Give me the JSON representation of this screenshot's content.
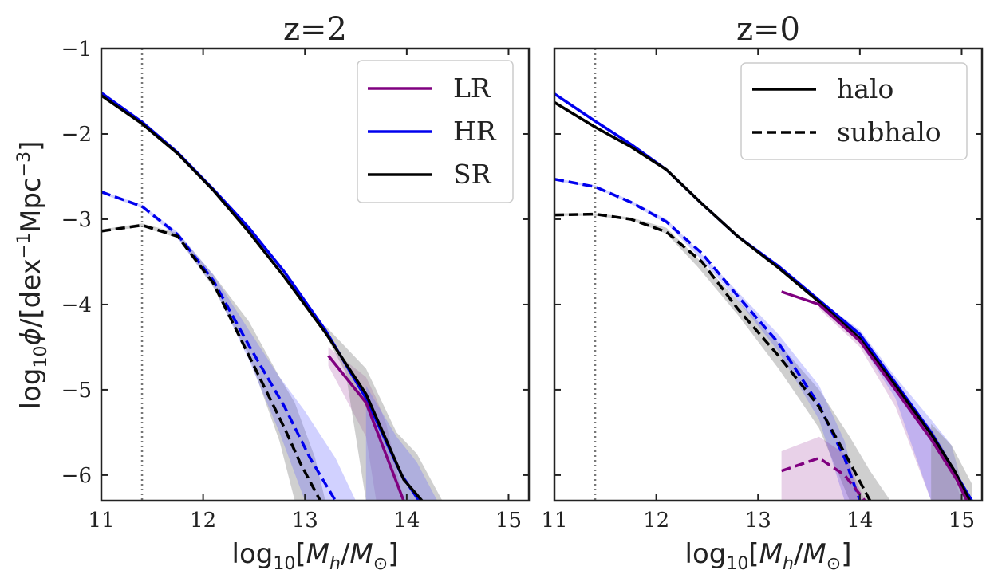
{
  "chart_data": [
    {
      "type": "line",
      "title": "z=2",
      "xlabel": "log10[M_h/M_sun]",
      "ylabel": "log10 phi/[dex^-1 Mpc^-3]",
      "xlim": [
        11,
        15.2
      ],
      "ylim": [
        -6.3,
        -1
      ],
      "xticks": [
        11,
        12,
        13,
        14,
        15
      ],
      "yticks": [
        -1,
        -2,
        -3,
        -4,
        -5,
        -6
      ],
      "vline": 11.4,
      "legend": {
        "position": "top-right",
        "entries": [
          {
            "label": "LR",
            "color": "#800080",
            "dash": false
          },
          {
            "label": "HR",
            "color": "#0000ee",
            "dash": false
          },
          {
            "label": "SR",
            "color": "#000000",
            "dash": false
          }
        ]
      },
      "bands": [
        {
          "name": "sr-subhalo-band",
          "color": "#808080",
          "opacity": 0.38,
          "x": [
            11.0,
            11.4,
            11.75,
            12.1,
            12.45,
            12.75,
            12.9,
            13.1,
            13.2
          ],
          "upper": [
            -3.12,
            -3.05,
            -3.16,
            -3.65,
            -4.2,
            -4.85,
            -5.15,
            -5.8,
            -6.3
          ],
          "lower": [
            -3.15,
            -3.09,
            -3.22,
            -3.8,
            -4.6,
            -5.6,
            -6.3,
            -6.3,
            -6.3
          ]
        },
        {
          "name": "hr-subhalo-band",
          "color": "#6666ff",
          "opacity": 0.3,
          "x": [
            11.0,
            11.4,
            11.75,
            12.1,
            12.45,
            12.75,
            13.0,
            13.3,
            13.5
          ],
          "upper": [
            -2.67,
            -2.83,
            -3.15,
            -3.65,
            -4.3,
            -4.85,
            -5.25,
            -5.8,
            -6.3
          ],
          "lower": [
            -2.7,
            -2.87,
            -3.22,
            -3.78,
            -4.65,
            -5.5,
            -6.3,
            -6.3,
            -6.3
          ]
        },
        {
          "name": "lr-halo-band",
          "color": "#800080",
          "opacity": 0.18,
          "x": [
            13.23,
            13.6,
            13.7,
            13.8,
            13.97
          ],
          "upper": [
            -4.5,
            -4.85,
            -5.1,
            -5.4,
            -6.3
          ],
          "lower": [
            -4.72,
            -5.55,
            -6.3,
            -6.3,
            -6.3
          ]
        },
        {
          "name": "sr-halo-band",
          "color": "#808080",
          "opacity": 0.38,
          "x": [
            13.2,
            13.4,
            13.6,
            13.9,
            14.1,
            14.35
          ],
          "upper": [
            -4.25,
            -4.5,
            -4.75,
            -5.5,
            -5.75,
            -6.3
          ],
          "lower": [
            -4.35,
            -4.8,
            -6.3,
            -6.3,
            -6.3,
            -6.3
          ]
        },
        {
          "name": "hr-halo-band",
          "color": "#6666ff",
          "opacity": 0.3,
          "x": [
            13.6,
            13.9,
            14.1,
            14.3
          ],
          "upper": [
            -4.95,
            -5.55,
            -5.85,
            -6.3
          ],
          "lower": [
            -6.3,
            -6.3,
            -6.3,
            -6.3
          ]
        }
      ],
      "series": [
        {
          "name": "HR halo",
          "color": "#0000ee",
          "dash": false,
          "x": [
            11.0,
            11.4,
            11.75,
            12.1,
            12.45,
            12.8,
            13.2,
            13.6,
            13.95,
            14.12
          ],
          "y": [
            -1.52,
            -1.86,
            -2.22,
            -2.65,
            -3.1,
            -3.62,
            -4.3,
            -5.1,
            -6.0,
            -6.3
          ]
        },
        {
          "name": "SR halo",
          "color": "#000000",
          "dash": false,
          "x": [
            11.0,
            11.4,
            11.75,
            12.1,
            12.45,
            12.8,
            13.2,
            13.6,
            13.97,
            14.15
          ],
          "y": [
            -1.55,
            -1.88,
            -2.23,
            -2.66,
            -3.15,
            -3.68,
            -4.33,
            -5.05,
            -6.05,
            -6.3
          ]
        },
        {
          "name": "LR halo",
          "color": "#800080",
          "dash": false,
          "x": [
            13.23,
            13.6,
            13.97
          ],
          "y": [
            -4.6,
            -5.15,
            -6.3
          ]
        },
        {
          "name": "HR subhalo",
          "color": "#0000ee",
          "dash": true,
          "x": [
            11.0,
            11.4,
            11.75,
            12.1,
            12.45,
            12.8,
            13.05,
            13.3
          ],
          "y": [
            -2.68,
            -2.85,
            -3.18,
            -3.72,
            -4.48,
            -5.2,
            -5.8,
            -6.3
          ]
        },
        {
          "name": "SR subhalo",
          "color": "#000000",
          "dash": true,
          "x": [
            11.0,
            11.4,
            11.75,
            12.1,
            12.45,
            12.8,
            12.95,
            13.15
          ],
          "y": [
            -3.14,
            -3.07,
            -3.2,
            -3.75,
            -4.6,
            -5.45,
            -5.85,
            -6.3
          ]
        }
      ]
    },
    {
      "type": "line",
      "title": "z=0",
      "xlabel": "log10[M_h/M_sun]",
      "ylabel": "",
      "xlim": [
        11,
        15.2
      ],
      "ylim": [
        -6.3,
        -1
      ],
      "xticks": [
        11,
        12,
        13,
        14,
        15
      ],
      "yticks": [
        -1,
        -2,
        -3,
        -4,
        -5,
        -6
      ],
      "vline": 11.4,
      "legend": {
        "position": "top-right",
        "entries": [
          {
            "label": "halo",
            "color": "#000000",
            "dash": false
          },
          {
            "label": "subhalo",
            "color": "#000000",
            "dash": true
          }
        ]
      },
      "bands": [
        {
          "name": "sr-subhalo-band",
          "color": "#808080",
          "opacity": 0.38,
          "x": [
            11.0,
            11.4,
            11.75,
            12.1,
            12.4,
            12.8,
            13.2,
            13.6,
            13.9,
            14.1,
            14.3
          ],
          "upper": [
            -2.93,
            -2.93,
            -2.98,
            -3.1,
            -3.45,
            -3.95,
            -4.45,
            -5.0,
            -5.55,
            -5.95,
            -6.3
          ],
          "lower": [
            -2.96,
            -2.96,
            -3.01,
            -3.17,
            -3.55,
            -4.12,
            -4.75,
            -5.45,
            -6.3,
            -6.3,
            -6.3
          ]
        },
        {
          "name": "hr-subhalo-band",
          "color": "#6666ff",
          "opacity": 0.3,
          "x": [
            11.0,
            11.4,
            11.75,
            12.1,
            12.4,
            12.8,
            13.2,
            13.6,
            13.85,
            14.0
          ],
          "upper": [
            -2.52,
            -2.6,
            -2.78,
            -3.0,
            -3.35,
            -3.85,
            -4.35,
            -4.95,
            -5.6,
            -6.3
          ],
          "lower": [
            -2.55,
            -2.63,
            -2.82,
            -3.05,
            -3.42,
            -3.95,
            -4.55,
            -5.35,
            -6.3,
            -6.3
          ]
        },
        {
          "name": "lr-subhalo-band",
          "color": "#800080",
          "opacity": 0.18,
          "x": [
            13.23,
            13.6,
            13.85,
            14.05
          ],
          "upper": [
            -5.72,
            -5.55,
            -5.75,
            -6.3
          ],
          "lower": [
            -6.3,
            -6.3,
            -6.3,
            -6.3
          ]
        },
        {
          "name": "lr-halo-band",
          "color": "#800080",
          "opacity": 0.18,
          "x": [
            13.6,
            14.0,
            14.35,
            14.7,
            14.85,
            15.0
          ],
          "upper": [
            -3.95,
            -4.35,
            -4.95,
            -5.45,
            -5.75,
            -6.3
          ],
          "lower": [
            -4.05,
            -4.5,
            -5.2,
            -6.3,
            -6.3,
            -6.3
          ]
        },
        {
          "name": "hr-halo-band",
          "color": "#6666ff",
          "opacity": 0.3,
          "x": [
            13.6,
            14.0,
            14.35,
            14.7,
            14.9,
            15.05
          ],
          "upper": [
            -3.95,
            -4.3,
            -4.85,
            -5.35,
            -5.65,
            -6.3
          ],
          "lower": [
            -4.0,
            -4.45,
            -5.1,
            -6.3,
            -6.3,
            -6.3
          ]
        },
        {
          "name": "sr-halo-band",
          "color": "#808080",
          "opacity": 0.38,
          "x": [
            14.7,
            14.9,
            15.1
          ],
          "upper": [
            -5.4,
            -5.65,
            -6.1
          ],
          "lower": [
            -6.3,
            -6.3,
            -6.3
          ]
        }
      ],
      "series": [
        {
          "name": "HR halo",
          "color": "#0000ee",
          "dash": false,
          "x": [
            11.0,
            11.4,
            11.75,
            12.1,
            12.45,
            12.8,
            13.2,
            13.6,
            14.0,
            14.35,
            14.7,
            14.95,
            15.1
          ],
          "y": [
            -1.53,
            -1.85,
            -2.12,
            -2.42,
            -2.82,
            -3.2,
            -3.55,
            -3.95,
            -4.35,
            -4.92,
            -5.5,
            -6.0,
            -6.3
          ]
        },
        {
          "name": "SR halo",
          "color": "#000000",
          "dash": false,
          "x": [
            11.0,
            11.4,
            11.75,
            12.1,
            12.45,
            12.8,
            13.2,
            13.6,
            14.0,
            14.35,
            14.7,
            14.93,
            15.08
          ],
          "y": [
            -1.63,
            -1.92,
            -2.15,
            -2.42,
            -2.82,
            -3.2,
            -3.57,
            -3.97,
            -4.4,
            -4.95,
            -5.52,
            -5.95,
            -6.3
          ]
        },
        {
          "name": "LR halo",
          "color": "#800080",
          "dash": false,
          "x": [
            13.23,
            13.6,
            14.0,
            14.35,
            14.7,
            14.95,
            15.05
          ],
          "y": [
            -3.85,
            -4.0,
            -4.43,
            -5.0,
            -5.58,
            -6.05,
            -6.3
          ]
        },
        {
          "name": "HR subhalo",
          "color": "#0000ee",
          "dash": true,
          "x": [
            11.0,
            11.4,
            11.75,
            12.1,
            12.45,
            12.8,
            13.2,
            13.6,
            13.85,
            14.0
          ],
          "y": [
            -2.53,
            -2.62,
            -2.8,
            -3.03,
            -3.4,
            -3.9,
            -4.45,
            -5.18,
            -5.8,
            -6.3
          ]
        },
        {
          "name": "SR subhalo",
          "color": "#000000",
          "dash": true,
          "x": [
            11.0,
            11.4,
            11.75,
            12.1,
            12.45,
            12.8,
            13.2,
            13.6,
            13.9,
            14.1
          ],
          "y": [
            -2.95,
            -2.94,
            -3.0,
            -3.15,
            -3.5,
            -4.05,
            -4.6,
            -5.2,
            -5.85,
            -6.3
          ]
        },
        {
          "name": "LR subhalo",
          "color": "#800080",
          "dash": true,
          "x": [
            13.23,
            13.6,
            13.85,
            14.05
          ],
          "y": [
            -5.95,
            -5.8,
            -6.0,
            -6.3
          ]
        }
      ]
    }
  ]
}
